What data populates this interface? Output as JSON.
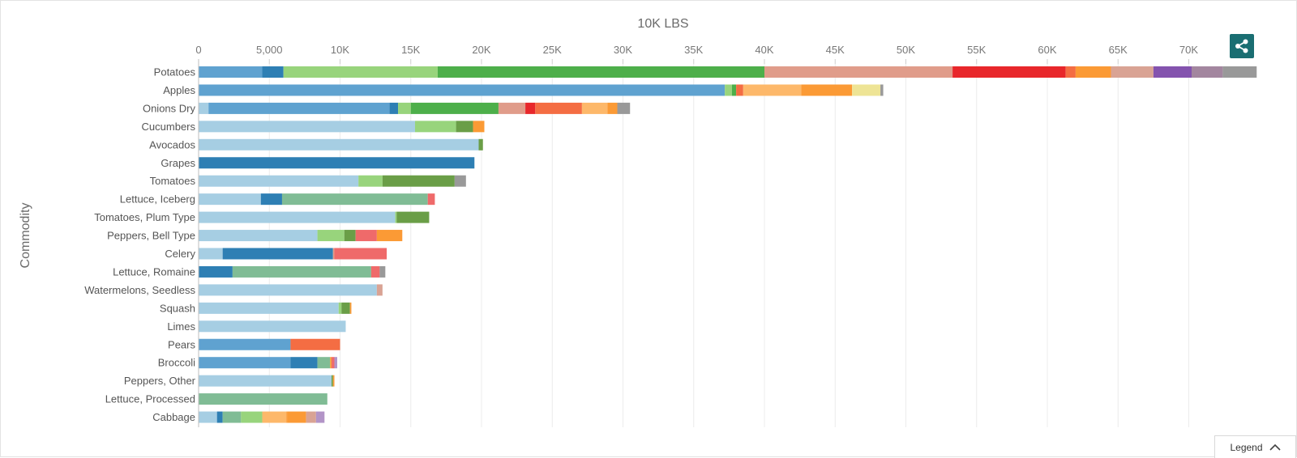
{
  "chart_data": {
    "type": "bar",
    "orientation": "horizontal",
    "stacked": true,
    "title": "10K LBS",
    "xlabel": "10K LBS",
    "ylabel": "Commodity",
    "xlim": [
      0,
      75000
    ],
    "grid": true,
    "x_ticks": [
      "0",
      "5,000",
      "10K",
      "15K",
      "20K",
      "25K",
      "30K",
      "35K",
      "40K",
      "45K",
      "50K",
      "55K",
      "60K",
      "65K",
      "70K"
    ],
    "categories": [
      "Potatoes",
      "Apples",
      "Onions Dry",
      "Cucumbers",
      "Avocados",
      "Grapes",
      "Tomatoes",
      "Lettuce, Iceberg",
      "Tomatoes, Plum Type",
      "Peppers, Bell Type",
      "Celery",
      "Lettuce, Romaine",
      "Watermelons, Seedless",
      "Squash",
      "Limes",
      "Pears",
      "Broccoli",
      "Peppers, Other",
      "Lettuce, Processed",
      "Cabbage"
    ],
    "segments": [
      [
        [
          4500,
          "#5fa2d0"
        ],
        [
          1500,
          "#2e7fb4"
        ],
        [
          10900,
          "#98d47c"
        ],
        [
          23100,
          "#4daf4a"
        ],
        [
          13300,
          "#e09c8a"
        ],
        [
          8000,
          "#e8272b"
        ],
        [
          700,
          "#f46d43"
        ],
        [
          2500,
          "#fb9a35"
        ],
        [
          3000,
          "#d9a394"
        ],
        [
          2700,
          "#8453ae"
        ],
        [
          2200,
          "#a3869f"
        ],
        [
          2400,
          "#999999"
        ]
      ],
      [
        [
          37200,
          "#5fa2d0"
        ],
        [
          500,
          "#98d47c"
        ],
        [
          300,
          "#4daf4a"
        ],
        [
          500,
          "#f46d43"
        ],
        [
          4100,
          "#fdb86a"
        ],
        [
          3600,
          "#fb9a35"
        ],
        [
          2000,
          "#eee495"
        ],
        [
          200,
          "#999999"
        ]
      ],
      [
        [
          700,
          "#a6cee3"
        ],
        [
          12800,
          "#5fa2d0"
        ],
        [
          600,
          "#2e7fb4"
        ],
        [
          900,
          "#98d47c"
        ],
        [
          6200,
          "#4daf4a"
        ],
        [
          1900,
          "#e09c8a"
        ],
        [
          700,
          "#e8272b"
        ],
        [
          3300,
          "#f46d43"
        ],
        [
          1800,
          "#fdb86a"
        ],
        [
          700,
          "#fb9a35"
        ],
        [
          900,
          "#999999"
        ]
      ],
      [
        [
          15300,
          "#a6cee3"
        ],
        [
          2900,
          "#98d47c"
        ],
        [
          1200,
          "#6a9e47"
        ],
        [
          800,
          "#fb9a35"
        ]
      ],
      [
        [
          19800,
          "#a6cee3"
        ],
        [
          300,
          "#6a9e47"
        ]
      ],
      [
        [
          19500,
          "#2e7fb4"
        ]
      ],
      [
        [
          11300,
          "#a6cee3"
        ],
        [
          1700,
          "#98d47c"
        ],
        [
          5100,
          "#6a9e47"
        ],
        [
          800,
          "#999999"
        ]
      ],
      [
        [
          4400,
          "#a6cee3"
        ],
        [
          1500,
          "#2e7fb4"
        ],
        [
          10300,
          "#80bc95"
        ],
        [
          500,
          "#ef6a6a"
        ]
      ],
      [
        [
          13900,
          "#a6cee3"
        ],
        [
          100,
          "#98d47c"
        ],
        [
          2300,
          "#6a9e47"
        ]
      ],
      [
        [
          8400,
          "#a6cee3"
        ],
        [
          1900,
          "#98d47c"
        ],
        [
          800,
          "#6a9e47"
        ],
        [
          1500,
          "#ef6a6a"
        ],
        [
          1800,
          "#fb9a35"
        ]
      ],
      [
        [
          1700,
          "#a6cee3"
        ],
        [
          7800,
          "#2e7fb4"
        ],
        [
          100,
          "#e09c8a"
        ],
        [
          3700,
          "#ef6a6a"
        ]
      ],
      [
        [
          2400,
          "#2e7fb4"
        ],
        [
          9800,
          "#80bc95"
        ],
        [
          600,
          "#ef6a6a"
        ],
        [
          400,
          "#999999"
        ]
      ],
      [
        [
          12600,
          "#a6cee3"
        ],
        [
          400,
          "#d9a394"
        ]
      ],
      [
        [
          9900,
          "#a6cee3"
        ],
        [
          200,
          "#98d47c"
        ],
        [
          600,
          "#6a9e47"
        ],
        [
          100,
          "#fb9a35"
        ]
      ],
      [
        [
          10400,
          "#a6cee3"
        ]
      ],
      [
        [
          6500,
          "#5fa2d0"
        ],
        [
          3500,
          "#f46d43"
        ]
      ],
      [
        [
          6500,
          "#5fa2d0"
        ],
        [
          1900,
          "#2e7fb4"
        ],
        [
          900,
          "#80bc95"
        ],
        [
          100,
          "#fb9a35"
        ],
        [
          200,
          "#ef6a6a"
        ],
        [
          200,
          "#b294c7"
        ]
      ],
      [
        [
          9400,
          "#a6cee3"
        ],
        [
          100,
          "#6a9e47"
        ],
        [
          100,
          "#fb9a35"
        ]
      ],
      [
        [
          9100,
          "#80bc95"
        ]
      ],
      [
        [
          1300,
          "#a6cee3"
        ],
        [
          400,
          "#2e7fb4"
        ],
        [
          1300,
          "#80bc95"
        ],
        [
          1500,
          "#98d47c"
        ],
        [
          1700,
          "#fdb86a"
        ],
        [
          100,
          "#fb9a35"
        ],
        [
          1300,
          "#fb9a35"
        ],
        [
          700,
          "#d9a394"
        ],
        [
          600,
          "#b294c7"
        ]
      ]
    ]
  },
  "ui": {
    "legend_label": "Legend",
    "share_icon": "share-icon",
    "legend_icon": "chevron-up-icon",
    "accent_color": "#1a6e72"
  }
}
